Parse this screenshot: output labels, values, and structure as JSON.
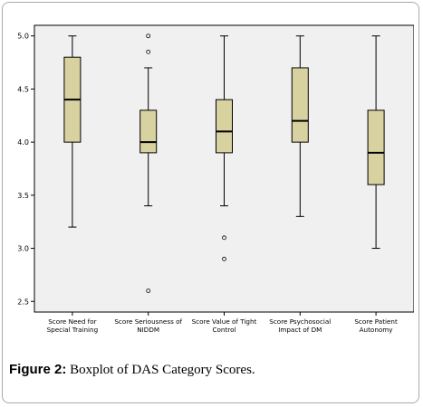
{
  "chart_data": {
    "type": "boxplot",
    "ylim": [
      2.4,
      5.1
    ],
    "yticks": [
      "5.0",
      "4.5",
      "4.0",
      "3.5",
      "3.0",
      "2.5"
    ],
    "ytick_values": [
      5.0,
      4.5,
      4.0,
      3.5,
      3.0,
      2.5
    ],
    "grid": false,
    "colors": {
      "box_fill": "#d8d2a0",
      "plot_bg": "#f0f0f0",
      "stroke": "#000000"
    },
    "categories": [
      {
        "label1": "Score Need for",
        "label2": "Special Training",
        "whisker_low": 3.2,
        "q1": 4.0,
        "median": 4.4,
        "q3": 4.8,
        "whisker_high": 5.0,
        "outliers": []
      },
      {
        "label1": "Score Seriousness of",
        "label2": "NIDDM",
        "whisker_low": 3.4,
        "q1": 3.9,
        "median": 4.0,
        "q3": 4.3,
        "whisker_high": 4.7,
        "outliers": [
          4.85,
          5.0,
          2.6
        ]
      },
      {
        "label1": "Score Value of Tight",
        "label2": "Control",
        "whisker_low": 3.4,
        "q1": 3.9,
        "median": 4.1,
        "q3": 4.4,
        "whisker_high": 5.0,
        "outliers": [
          3.1,
          2.9
        ]
      },
      {
        "label1": "Score Psychosocial",
        "label2": "Impact of DM",
        "whisker_low": 3.3,
        "q1": 4.0,
        "median": 4.2,
        "q3": 4.7,
        "whisker_high": 5.0,
        "outliers": []
      },
      {
        "label1": "Score Patient",
        "label2": "Autonomy",
        "whisker_low": 3.0,
        "q1": 3.6,
        "median": 3.9,
        "q3": 4.3,
        "whisker_high": 5.0,
        "outliers": []
      }
    ]
  },
  "caption": {
    "label": "Figure 2:",
    "text": " Boxplot of DAS Category Scores."
  }
}
